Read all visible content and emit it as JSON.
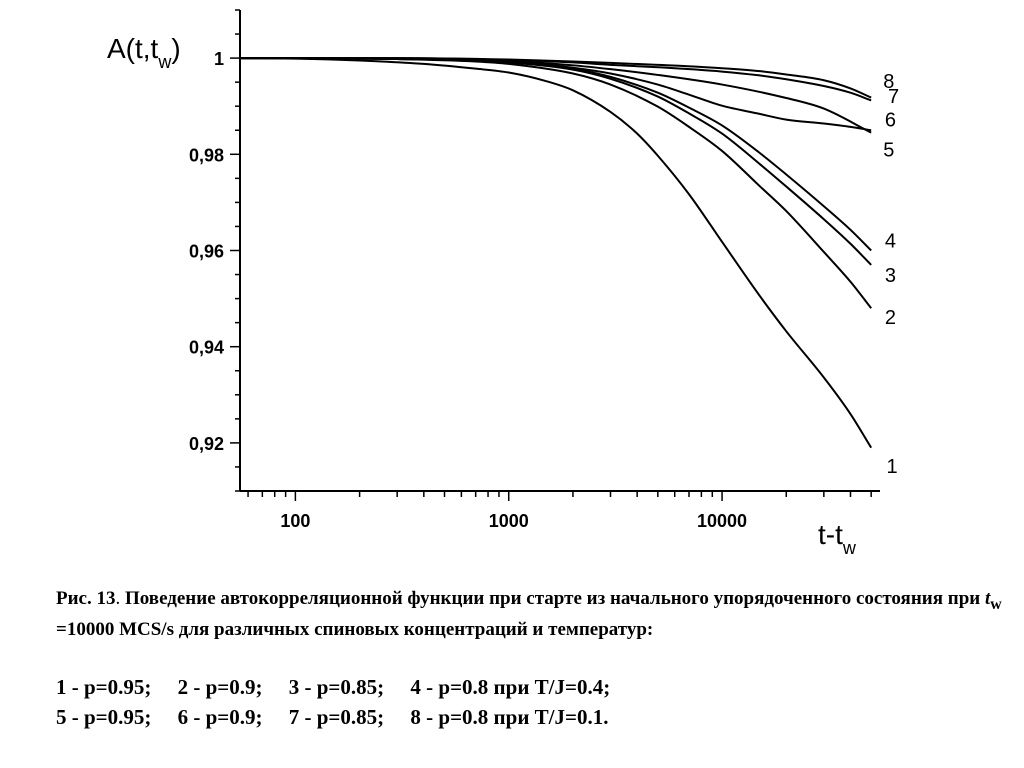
{
  "chart_data": {
    "type": "line",
    "x_scale": "log",
    "xlabel_main": "t-t",
    "xlabel_sub": "w",
    "ylabel_main": "A(t,t",
    "ylabel_sub": "w",
    "ylabel_close": ")",
    "xlim": [
      55,
      55000
    ],
    "ylim": [
      0.91,
      1.01
    ],
    "x_ticks": [
      {
        "value": 100,
        "label": "100"
      },
      {
        "value": 1000,
        "label": "1000"
      },
      {
        "value": 10000,
        "label": "10000"
      }
    ],
    "y_ticks": [
      {
        "value": 1.0,
        "label": "1"
      },
      {
        "value": 0.98,
        "label": "0,98"
      },
      {
        "value": 0.96,
        "label": "0,96"
      },
      {
        "value": 0.94,
        "label": "0,94"
      },
      {
        "value": 0.92,
        "label": "0,92"
      }
    ],
    "grid": false,
    "series": [
      {
        "name": "1",
        "x": [
          55,
          100,
          200,
          400,
          700,
          1000,
          1500,
          2000,
          3000,
          4000,
          5000,
          7000,
          10000,
          15000,
          20000,
          30000,
          40000,
          50000
        ],
        "y": [
          1.0,
          0.9999,
          0.9995,
          0.9988,
          0.9978,
          0.997,
          0.9952,
          0.9933,
          0.9888,
          0.9843,
          0.9797,
          0.9717,
          0.9618,
          0.9506,
          0.9432,
          0.9336,
          0.926,
          0.919
        ]
      },
      {
        "name": "2",
        "x": [
          55,
          100,
          300,
          700,
          1000,
          2000,
          3000,
          5000,
          7000,
          10000,
          15000,
          20000,
          30000,
          40000,
          50000
        ],
        "y": [
          1.0,
          1.0,
          0.9998,
          0.9993,
          0.9988,
          0.9968,
          0.9945,
          0.9899,
          0.9857,
          0.9807,
          0.9734,
          0.9682,
          0.9597,
          0.9535,
          0.948
        ]
      },
      {
        "name": "3",
        "x": [
          55,
          100,
          300,
          700,
          1000,
          2000,
          3000,
          5000,
          7000,
          10000,
          15000,
          20000,
          30000,
          40000,
          50000
        ],
        "y": [
          1.0,
          1.0,
          0.9998,
          0.9995,
          0.9991,
          0.9976,
          0.9957,
          0.992,
          0.9885,
          0.9843,
          0.978,
          0.9733,
          0.9665,
          0.9614,
          0.957
        ]
      },
      {
        "name": "4",
        "x": [
          55,
          100,
          300,
          700,
          1000,
          2000,
          3000,
          5000,
          7000,
          10000,
          15000,
          20000,
          30000,
          40000,
          50000
        ],
        "y": [
          1.0,
          1.0,
          0.9998,
          0.9995,
          0.9992,
          0.9978,
          0.9961,
          0.9928,
          0.9897,
          0.986,
          0.9803,
          0.9758,
          0.9692,
          0.9643,
          0.96
        ]
      },
      {
        "name": "5",
        "x": [
          55,
          100,
          300,
          1000,
          2000,
          3000,
          5000,
          7000,
          10000,
          15000,
          20000,
          30000,
          40000,
          50000
        ],
        "y": [
          1.0,
          1.0,
          0.9999,
          0.9993,
          0.998,
          0.9968,
          0.9945,
          0.9924,
          0.9901,
          0.9884,
          0.9872,
          0.9864,
          0.9857,
          0.985
        ]
      },
      {
        "name": "6",
        "x": [
          55,
          100,
          300,
          1000,
          2000,
          3000,
          5000,
          10000,
          20000,
          30000,
          50000
        ],
        "y": [
          1.0,
          1.0,
          0.9999,
          0.9994,
          0.9985,
          0.9977,
          0.9965,
          0.9945,
          0.9917,
          0.9895,
          0.9845
        ]
      },
      {
        "name": "7",
        "x": [
          55,
          100,
          300,
          1000,
          2000,
          3000,
          5000,
          10000,
          15000,
          20000,
          30000,
          40000,
          50000
        ],
        "y": [
          1.0,
          1.0,
          1.0,
          0.9996,
          0.9991,
          0.9986,
          0.9981,
          0.9972,
          0.9964,
          0.9956,
          0.9942,
          0.9928,
          0.9912
        ]
      },
      {
        "name": "8",
        "x": [
          55,
          100,
          300,
          1000,
          2000,
          3000,
          5000,
          10000,
          15000,
          20000,
          30000,
          40000,
          50000
        ],
        "y": [
          1.0,
          1.0,
          1.0,
          0.9997,
          0.9993,
          0.999,
          0.9986,
          0.9979,
          0.9973,
          0.9966,
          0.9954,
          0.9937,
          0.9918
        ]
      }
    ],
    "curve_labels": [
      {
        "text": "8",
        "x": 57000,
        "y": 0.9952
      },
      {
        "text": "7",
        "x": 60000,
        "y": 0.9921
      },
      {
        "text": "6",
        "x": 58000,
        "y": 0.9872
      },
      {
        "text": "5",
        "x": 57000,
        "y": 0.981
      },
      {
        "text": "4",
        "x": 58000,
        "y": 0.9621
      },
      {
        "text": "3",
        "x": 58000,
        "y": 0.9549
      },
      {
        "text": "2",
        "x": 58000,
        "y": 0.9462
      },
      {
        "text": "1",
        "x": 59000,
        "y": 0.9152
      }
    ]
  },
  "caption": {
    "prefix": "Рис. 13",
    "dot": ".",
    "text1": " Поведение автокорреляционной функции при старте из начального упорядоченного состояния при ",
    "tw_main": "t",
    "tw_sub": "w",
    "text2": " =10000 MCS/s для различных спиновых концентраций и температур:"
  },
  "legend": {
    "row1": "1 - p=0.95;     2 - p=0.9;     3 - p=0.85;     4 - p=0.8 при T/J=0.4;",
    "row2": "5 - p=0.95;     6 - p=0.9;     7 - p=0.85;     8 - p=0.8 при T/J=0.1."
  }
}
